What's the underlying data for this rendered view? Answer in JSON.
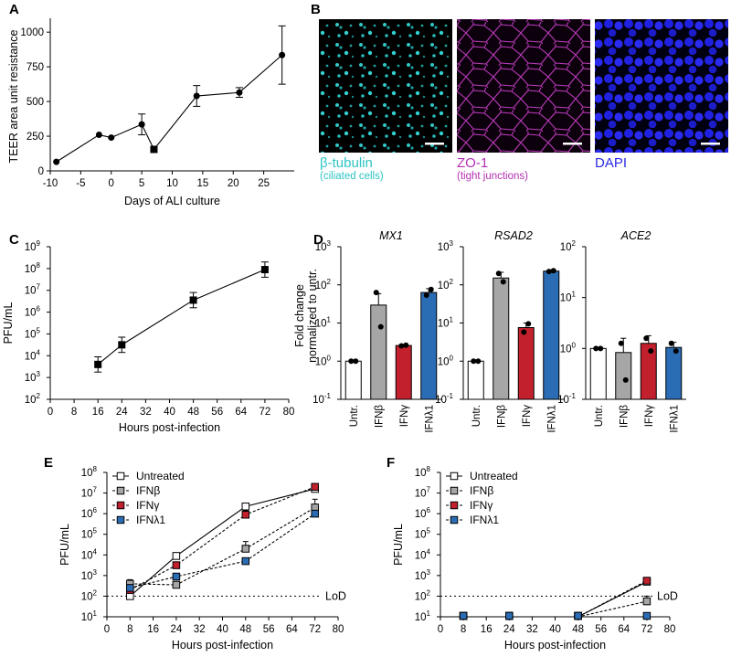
{
  "panels": {
    "A": "A",
    "B": "B",
    "C": "C",
    "D": "D",
    "E": "E",
    "F": "F"
  },
  "chart_data": [
    {
      "id": "A",
      "type": "line",
      "xlabel": "Days of ALI culture",
      "ylabel": "TEER area unit resistance",
      "xlim": [
        -10,
        30
      ],
      "ylim": [
        0,
        1100
      ],
      "xticks": [
        -10,
        -5,
        0,
        5,
        10,
        15,
        20,
        25
      ],
      "xtick_labels": [
        "-10",
        "-5",
        "0",
        "5",
        "10",
        "15",
        "20",
        "25"
      ],
      "yticks": [
        0,
        250,
        500,
        750,
        1000
      ],
      "ytick_labels": [
        "0",
        "250",
        "500",
        "750",
        "1000"
      ],
      "series": [
        {
          "name": "TEER",
          "x": [
            -9,
            -2,
            0,
            5,
            7,
            14,
            21,
            28
          ],
          "y": [
            65,
            260,
            240,
            335,
            155,
            540,
            565,
            835
          ],
          "err": [
            0,
            0,
            0,
            75,
            0,
            75,
            35,
            210
          ]
        }
      ]
    },
    {
      "id": "C",
      "type": "line",
      "yscale": "log",
      "xlabel": "Hours post-infection",
      "ylabel": "PFU/mL",
      "xlim": [
        0,
        80
      ],
      "ylim_exp": [
        2,
        9
      ],
      "xticks": [
        0,
        8,
        16,
        24,
        32,
        40,
        48,
        56,
        64,
        72,
        80
      ],
      "xtick_labels": [
        "0",
        "8",
        "16",
        "24",
        "32",
        "40",
        "48",
        "56",
        "64",
        "72",
        "80"
      ],
      "ytick_exps": [
        2,
        3,
        4,
        5,
        6,
        7,
        8,
        9
      ],
      "ytick_labels": [
        "10",
        "10",
        "10",
        "10",
        "10",
        "10",
        "10",
        "10"
      ],
      "ytick_sups": [
        "2",
        "3",
        "4",
        "5",
        "6",
        "7",
        "8",
        "9"
      ],
      "series": [
        {
          "name": "SARS-CoV-2",
          "x": [
            16,
            24,
            48,
            72
          ],
          "y_exp": [
            3.6,
            4.5,
            6.55,
            7.95
          ],
          "err_exp": [
            0.35,
            0.35,
            0.35,
            0.35
          ]
        }
      ]
    },
    {
      "id": "D",
      "type": "bar",
      "yscale": "log",
      "ylabel_lines": [
        "Fold change",
        "normalized to untr."
      ],
      "ytick_exps": [
        -1,
        0,
        1,
        2,
        3
      ],
      "ytick_labels": [
        "10",
        "10",
        "10",
        "10",
        "10"
      ],
      "ytick_sups": [
        "-1",
        "0",
        "1",
        "2",
        "3"
      ],
      "ytick_sups_ace2": [
        "-1",
        "0",
        "1",
        "2"
      ],
      "categories": [
        "Untr.",
        "IFNβ",
        "IFNγ",
        "IFNλ1"
      ],
      "colors": [
        "#ffffff",
        "#a6a6a6",
        "#c3202e",
        "#2a6db5"
      ],
      "subplots": [
        {
          "title": "MX1",
          "ymax_exp": 3,
          "values_exp": [
            0,
            1.47,
            0.41,
            1.8
          ],
          "err_exp": [
            0,
            0.3,
            0.03,
            0.1
          ],
          "points_exp": [
            [
              0,
              0
            ],
            [
              1.8,
              0.9
            ],
            [
              0.4,
              0.42
            ],
            [
              1.73,
              1.88
            ]
          ]
        },
        {
          "title": "RSAD2",
          "ymax_exp": 3,
          "values_exp": [
            0,
            2.18,
            0.88,
            2.36
          ],
          "err_exp": [
            0,
            0.15,
            0.12,
            0.03
          ],
          "points_exp": [
            [
              0,
              0
            ],
            [
              2.3,
              2.08
            ],
            [
              0.76,
              0.98
            ],
            [
              2.35,
              2.37
            ]
          ]
        },
        {
          "title": "ACE2",
          "ymax_exp": 2,
          "values_exp": [
            0,
            -0.08,
            0.1,
            0.02
          ],
          "err_exp": [
            0,
            0.28,
            0.15,
            0.1
          ],
          "points_exp": [
            [
              0,
              0
            ],
            [
              0.1,
              -0.62
            ],
            [
              0.2,
              -0.05
            ],
            [
              0.1,
              -0.05
            ]
          ]
        }
      ]
    },
    {
      "id": "E",
      "type": "line",
      "yscale": "log",
      "xlabel": "Hours post-infection",
      "ylabel": "PFU/mL",
      "xlim": [
        0,
        80
      ],
      "ylim_exp": [
        1,
        8
      ],
      "xticks": [
        0,
        8,
        16,
        24,
        32,
        40,
        48,
        56,
        64,
        72,
        80
      ],
      "xtick_labels": [
        "0",
        "8",
        "16",
        "24",
        "32",
        "40",
        "48",
        "56",
        "64",
        "72",
        "80"
      ],
      "ytick_exps": [
        1,
        2,
        3,
        4,
        5,
        6,
        7,
        8
      ],
      "ytick_labels": [
        "10",
        "10",
        "10",
        "10",
        "10",
        "10",
        "10",
        "10"
      ],
      "ytick_sups": [
        "1",
        "2",
        "3",
        "4",
        "5",
        "6",
        "7",
        "8"
      ],
      "lod_exp": 2,
      "lod_label": "LoD",
      "x": [
        8,
        24,
        48,
        72
      ],
      "series": [
        {
          "name": "Untreated",
          "color": "#ffffff",
          "dash": false,
          "y_exp": [
            2.0,
            3.95,
            6.35,
            7.2
          ],
          "err_exp": [
            0.15,
            0.15,
            0.1,
            0.12
          ]
        },
        {
          "name": "IFNβ",
          "color": "#a6a6a6",
          "dash": true,
          "y_exp": [
            2.6,
            2.55,
            4.3,
            6.3
          ],
          "err_exp": [
            0.2,
            0.15,
            0.35,
            0.4
          ]
        },
        {
          "name": "IFNγ",
          "color": "#c3202e",
          "dash": true,
          "y_exp": [
            2.3,
            3.5,
            5.95,
            7.3
          ],
          "err_exp": [
            0.15,
            0.15,
            0.2,
            0.15
          ]
        },
        {
          "name": "IFNλ1",
          "color": "#2a6db5",
          "dash": true,
          "y_exp": [
            2.4,
            2.95,
            3.7,
            6.0
          ],
          "err_exp": [
            0.15,
            0.1,
            0.1,
            0.1
          ]
        }
      ]
    },
    {
      "id": "F",
      "type": "line",
      "yscale": "log",
      "xlabel": "Hours post-infection",
      "ylabel": "PFU/mL",
      "xlim": [
        0,
        80
      ],
      "ylim_exp": [
        1,
        8
      ],
      "xticks": [
        0,
        8,
        16,
        24,
        32,
        40,
        48,
        56,
        64,
        72,
        80
      ],
      "xtick_labels": [
        "0",
        "8",
        "16",
        "24",
        "32",
        "40",
        "48",
        "56",
        "64",
        "72",
        "80"
      ],
      "ytick_exps": [
        1,
        2,
        3,
        4,
        5,
        6,
        7,
        8
      ],
      "ytick_labels": [
        "10",
        "10",
        "10",
        "10",
        "10",
        "10",
        "10",
        "10"
      ],
      "ytick_sups": [
        "1",
        "2",
        "3",
        "4",
        "5",
        "6",
        "7",
        "8"
      ],
      "lod_exp": 2,
      "lod_label": "LoD",
      "x": [
        8,
        24,
        48,
        72
      ],
      "series": [
        {
          "name": "Untreated",
          "color": "#ffffff",
          "dash": false,
          "y_exp": [
            1.0,
            1.0,
            1.0,
            2.7
          ],
          "err_exp": [
            0,
            0,
            0,
            0.12
          ]
        },
        {
          "name": "IFNβ",
          "color": "#a6a6a6",
          "dash": true,
          "y_exp": [
            1.0,
            1.0,
            1.0,
            1.75
          ],
          "err_exp": [
            0,
            0,
            0,
            0.25
          ]
        },
        {
          "name": "IFNγ",
          "color": "#c3202e",
          "dash": true,
          "y_exp": [
            1.0,
            1.0,
            1.0,
            2.75
          ],
          "err_exp": [
            0,
            0,
            0,
            0.1
          ]
        },
        {
          "name": "IFNλ1",
          "color": "#2a6db5",
          "dash": true,
          "y_exp": [
            1.0,
            1.0,
            1.0,
            1.0
          ],
          "err_exp": [
            0,
            0,
            0,
            0
          ]
        }
      ]
    }
  ],
  "micrographs": [
    {
      "label": "β-tubulin",
      "sublabel": "(ciliated cells)",
      "color": "#2ec4c4"
    },
    {
      "label": "ZO-1",
      "sublabel": "(tight junctions)",
      "color": "#b42fb4"
    },
    {
      "label": "DAPI",
      "sublabel": "",
      "color": "#2a2ae6"
    }
  ]
}
